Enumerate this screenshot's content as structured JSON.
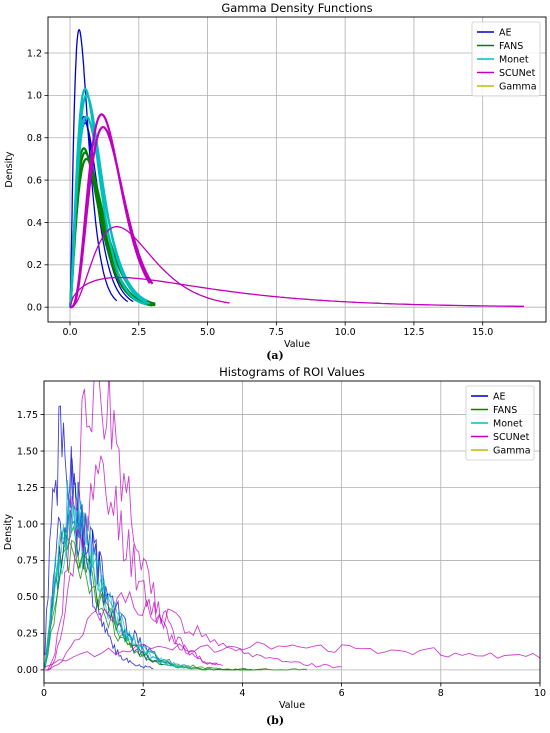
{
  "captions": {
    "a": "(a)",
    "b": "(b)"
  },
  "colors": {
    "AE": "#0000cc",
    "FANS": "#008000",
    "Monet": "#00bfbf",
    "SCUNet": "#bf00bf",
    "Gamma": "#bfbf00"
  },
  "chart_data": [
    {
      "type": "line",
      "title": "Gamma Density Functions",
      "xlabel": "Value",
      "ylabel": "Density",
      "xlim": [
        -0.8,
        17.3
      ],
      "ylim": [
        -0.07,
        1.37
      ],
      "xticks": [
        0,
        2.5,
        5,
        7.5,
        10,
        12.5,
        15
      ],
      "xtick_labels": [
        "0.0",
        "2.5",
        "5.0",
        "7.5",
        "10.0",
        "12.5",
        "15.0"
      ],
      "yticks": [
        0,
        0.2,
        0.4,
        0.6,
        0.8,
        1.0,
        1.2
      ],
      "ytick_labels": [
        "0.0",
        "0.2",
        "0.4",
        "0.6",
        "0.8",
        "1.0",
        "1.2"
      ],
      "grid": true,
      "legend": {
        "position": "top-right",
        "entries": [
          "AE",
          "FANS",
          "Monet",
          "SCUNet",
          "Gamma"
        ]
      },
      "series": [
        {
          "name": "AE",
          "curves": [
            {
              "k": 2.5,
              "peak": 1.31,
              "mode": 0.33,
              "xmax": 1.7
            },
            {
              "k": 3.0,
              "peak": 0.9,
              "mode": 0.5,
              "xmax": 2.1
            },
            {
              "k": 3.0,
              "peak": 0.87,
              "mode": 0.55,
              "xmax": 2.3
            }
          ]
        },
        {
          "name": "FANS",
          "curves": [
            {
              "k": 2.4,
              "peak": 0.75,
              "mode": 0.5,
              "xmax": 3.0
            },
            {
              "k": 2.5,
              "peak": 0.73,
              "mode": 0.55,
              "xmax": 3.1
            },
            {
              "k": 2.5,
              "peak": 0.7,
              "mode": 0.6,
              "xmax": 3.1
            }
          ]
        },
        {
          "name": "Monet",
          "curves": [
            {
              "k": 2.8,
              "peak": 1.03,
              "mode": 0.55,
              "xmax": 2.8
            },
            {
              "k": 2.8,
              "peak": 1.0,
              "mode": 0.6,
              "xmax": 2.9
            },
            {
              "k": 2.6,
              "peak": 0.9,
              "mode": 0.6,
              "xmax": 2.8
            }
          ]
        },
        {
          "name": "SCUNet",
          "curves": [
            {
              "k": 4.5,
              "peak": 0.91,
              "mode": 1.15,
              "xmax": 2.9
            },
            {
              "k": 4.5,
              "peak": 0.85,
              "mode": 1.2,
              "xmax": 3.0
            },
            {
              "k": 3.5,
              "peak": 0.38,
              "mode": 1.7,
              "xmax": 5.8
            },
            {
              "k": 1.6,
              "peak": 0.14,
              "mode": 1.8,
              "xmax": 16.5
            }
          ]
        },
        {
          "name": "Gamma",
          "curves": []
        }
      ]
    },
    {
      "type": "line",
      "title": "Histograms of ROI Values",
      "xlabel": "Value",
      "ylabel": "Density",
      "xlim": [
        0,
        10
      ],
      "ylim": [
        -0.09,
        1.98
      ],
      "xticks": [
        0,
        2,
        4,
        6,
        8,
        10
      ],
      "xtick_labels": [
        "0",
        "2",
        "4",
        "6",
        "8",
        "10"
      ],
      "yticks": [
        0,
        0.25,
        0.5,
        0.75,
        1.0,
        1.25,
        1.5,
        1.75
      ],
      "ytick_labels": [
        "0.00",
        "0.25",
        "0.50",
        "0.75",
        "1.00",
        "1.25",
        "1.50",
        "1.75"
      ],
      "grid": true,
      "legend": {
        "position": "top-right",
        "entries": [
          "AE",
          "FANS",
          "Monet",
          "SCUNet",
          "Gamma"
        ]
      },
      "series": [
        {
          "name": "AE",
          "curves": [
            {
              "k": 2.4,
              "peak": 1.5,
              "mode": 0.35,
              "xmax": 2.2,
              "seed": 1
            },
            {
              "k": 2.8,
              "peak": 1.2,
              "mode": 0.55,
              "xmax": 2.4,
              "seed": 2
            },
            {
              "k": 2.6,
              "peak": 1.0,
              "mode": 0.6,
              "xmax": 2.6,
              "seed": 3
            }
          ]
        },
        {
          "name": "FANS",
          "curves": [
            {
              "k": 2.4,
              "peak": 0.9,
              "mode": 0.5,
              "xmax": 4.5,
              "seed": 4
            },
            {
              "k": 2.5,
              "peak": 0.8,
              "mode": 0.55,
              "xmax": 5.3,
              "seed": 5
            },
            {
              "k": 2.5,
              "peak": 0.75,
              "mode": 0.6,
              "xmax": 4.2,
              "seed": 6
            }
          ]
        },
        {
          "name": "Monet",
          "curves": [
            {
              "k": 2.6,
              "peak": 1.1,
              "mode": 0.55,
              "xmax": 2.9,
              "seed": 7
            },
            {
              "k": 2.7,
              "peak": 1.0,
              "mode": 0.6,
              "xmax": 3.0,
              "seed": 8
            },
            {
              "k": 2.5,
              "peak": 0.95,
              "mode": 0.55,
              "xmax": 2.8,
              "seed": 9
            }
          ]
        },
        {
          "name": "SCUNet",
          "curves": [
            {
              "k": 4.5,
              "peak": 1.88,
              "mode": 1.05,
              "xmax": 3.5,
              "seed": 10
            },
            {
              "k": 4.5,
              "peak": 1.25,
              "mode": 1.1,
              "xmax": 3.6,
              "seed": 11
            },
            {
              "k": 3.5,
              "peak": 0.45,
              "mode": 1.7,
              "xmax": 6.0,
              "seed": 12
            },
            {
              "k": 1.6,
              "peak": 0.16,
              "mode": 3.5,
              "xmax": 10.0,
              "seed": 13
            }
          ]
        },
        {
          "name": "Gamma",
          "curves": []
        }
      ]
    }
  ]
}
